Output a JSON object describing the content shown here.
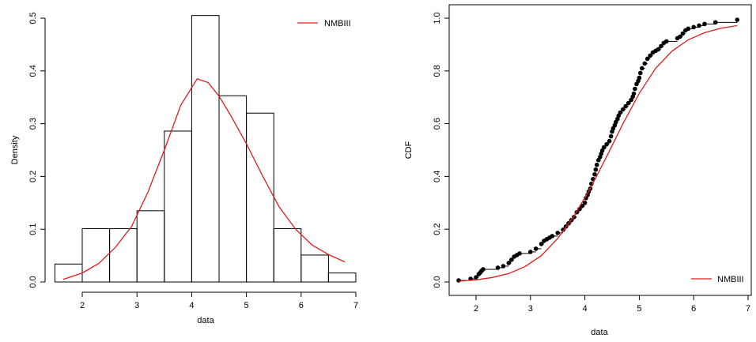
{
  "colors": {
    "fit": "#e31a1c",
    "ink": "#000000"
  },
  "chart_data": [
    {
      "type": "bar",
      "subtype": "histogram",
      "xlabel": "data",
      "ylabel": "Density",
      "xlim": [
        1.5,
        7.0
      ],
      "ylim": [
        0,
        0.5
      ],
      "xticks": [
        "2",
        "3",
        "4",
        "5",
        "6",
        "7"
      ],
      "yticks": [
        "0.0",
        "0.1",
        "0.2",
        "0.3",
        "0.4",
        "0.5"
      ],
      "bins": [
        {
          "from": 1.5,
          "to": 2.0,
          "density": 0.034
        },
        {
          "from": 2.0,
          "to": 2.5,
          "density": 0.101
        },
        {
          "from": 2.5,
          "to": 3.0,
          "density": 0.101
        },
        {
          "from": 3.0,
          "to": 3.5,
          "density": 0.135
        },
        {
          "from": 3.5,
          "to": 4.0,
          "density": 0.286
        },
        {
          "from": 4.0,
          "to": 4.5,
          "density": 0.505
        },
        {
          "from": 4.5,
          "to": 5.0,
          "density": 0.353
        },
        {
          "from": 5.0,
          "to": 5.5,
          "density": 0.32
        },
        {
          "from": 5.5,
          "to": 6.0,
          "density": 0.101
        },
        {
          "from": 6.0,
          "to": 6.5,
          "density": 0.051
        },
        {
          "from": 6.5,
          "to": 7.0,
          "density": 0.017
        }
      ],
      "series": [
        {
          "name": "NMBIII",
          "x": [
            1.65,
            2.0,
            2.3,
            2.6,
            2.9,
            3.2,
            3.5,
            3.8,
            4.1,
            4.3,
            4.5,
            4.7,
            5.0,
            5.3,
            5.6,
            5.9,
            6.2,
            6.5,
            6.8
          ],
          "y": [
            0.005,
            0.017,
            0.035,
            0.065,
            0.105,
            0.17,
            0.25,
            0.335,
            0.385,
            0.378,
            0.352,
            0.318,
            0.262,
            0.2,
            0.142,
            0.1,
            0.07,
            0.052,
            0.038
          ]
        }
      ],
      "legend": {
        "position": "top-right",
        "entries": [
          "NMBIII"
        ]
      }
    },
    {
      "type": "line",
      "subtype": "ecdf",
      "xlabel": "data",
      "ylabel": "CDF",
      "xlim": [
        1.65,
        7.0
      ],
      "ylim": [
        0,
        1.0
      ],
      "xticks": [
        "2",
        "3",
        "4",
        "5",
        "6",
        "7"
      ],
      "yticks": [
        "0.0",
        "0.2",
        "0.4",
        "0.6",
        "0.8",
        "1.0"
      ],
      "empirical": {
        "x": [
          1.68,
          1.9,
          2.0,
          2.05,
          2.08,
          2.1,
          2.13,
          2.4,
          2.5,
          2.6,
          2.65,
          2.7,
          2.75,
          2.8,
          3.0,
          3.1,
          3.2,
          3.25,
          3.3,
          3.35,
          3.4,
          3.5,
          3.6,
          3.65,
          3.7,
          3.75,
          3.8,
          3.85,
          3.9,
          3.95,
          4.0,
          4.02,
          4.05,
          4.07,
          4.1,
          4.12,
          4.15,
          4.18,
          4.2,
          4.22,
          4.25,
          4.28,
          4.3,
          4.32,
          4.35,
          4.4,
          4.45,
          4.48,
          4.5,
          4.52,
          4.55,
          4.57,
          4.6,
          4.62,
          4.65,
          4.7,
          4.75,
          4.8,
          4.85,
          4.88,
          4.9,
          4.92,
          4.95,
          4.98,
          5.0,
          5.02,
          5.05,
          5.1,
          5.15,
          5.2,
          5.25,
          5.3,
          5.35,
          5.4,
          5.45,
          5.5,
          5.7,
          5.75,
          5.8,
          5.85,
          5.9,
          6.0,
          6.1,
          6.2,
          6.4,
          6.8
        ],
        "y": [
          0.006,
          0.012,
          0.018,
          0.03,
          0.036,
          0.042,
          0.048,
          0.054,
          0.06,
          0.072,
          0.084,
          0.096,
          0.102,
          0.108,
          0.114,
          0.126,
          0.144,
          0.156,
          0.162,
          0.168,
          0.174,
          0.186,
          0.198,
          0.21,
          0.222,
          0.234,
          0.246,
          0.264,
          0.276,
          0.288,
          0.3,
          0.318,
          0.33,
          0.342,
          0.354,
          0.372,
          0.39,
          0.408,
          0.426,
          0.444,
          0.462,
          0.474,
          0.486,
          0.498,
          0.51,
          0.522,
          0.534,
          0.552,
          0.57,
          0.582,
          0.594,
          0.606,
          0.618,
          0.63,
          0.642,
          0.654,
          0.666,
          0.678,
          0.69,
          0.702,
          0.714,
          0.732,
          0.75,
          0.762,
          0.774,
          0.792,
          0.81,
          0.828,
          0.846,
          0.858,
          0.87,
          0.876,
          0.882,
          0.894,
          0.906,
          0.912,
          0.924,
          0.93,
          0.942,
          0.954,
          0.96,
          0.966,
          0.972,
          0.978,
          0.984,
          0.994
        ]
      },
      "series": [
        {
          "name": "NMBIII",
          "x": [
            1.68,
            2.0,
            2.3,
            2.6,
            2.9,
            3.2,
            3.5,
            3.8,
            4.1,
            4.4,
            4.7,
            5.0,
            5.3,
            5.6,
            5.9,
            6.2,
            6.5,
            6.8
          ],
          "y": [
            0.003,
            0.008,
            0.017,
            0.032,
            0.058,
            0.1,
            0.165,
            0.25,
            0.355,
            0.475,
            0.6,
            0.715,
            0.81,
            0.875,
            0.918,
            0.945,
            0.962,
            0.972
          ]
        }
      ],
      "legend": {
        "position": "bottom-right",
        "entries": [
          "NMBIII"
        ]
      }
    }
  ]
}
